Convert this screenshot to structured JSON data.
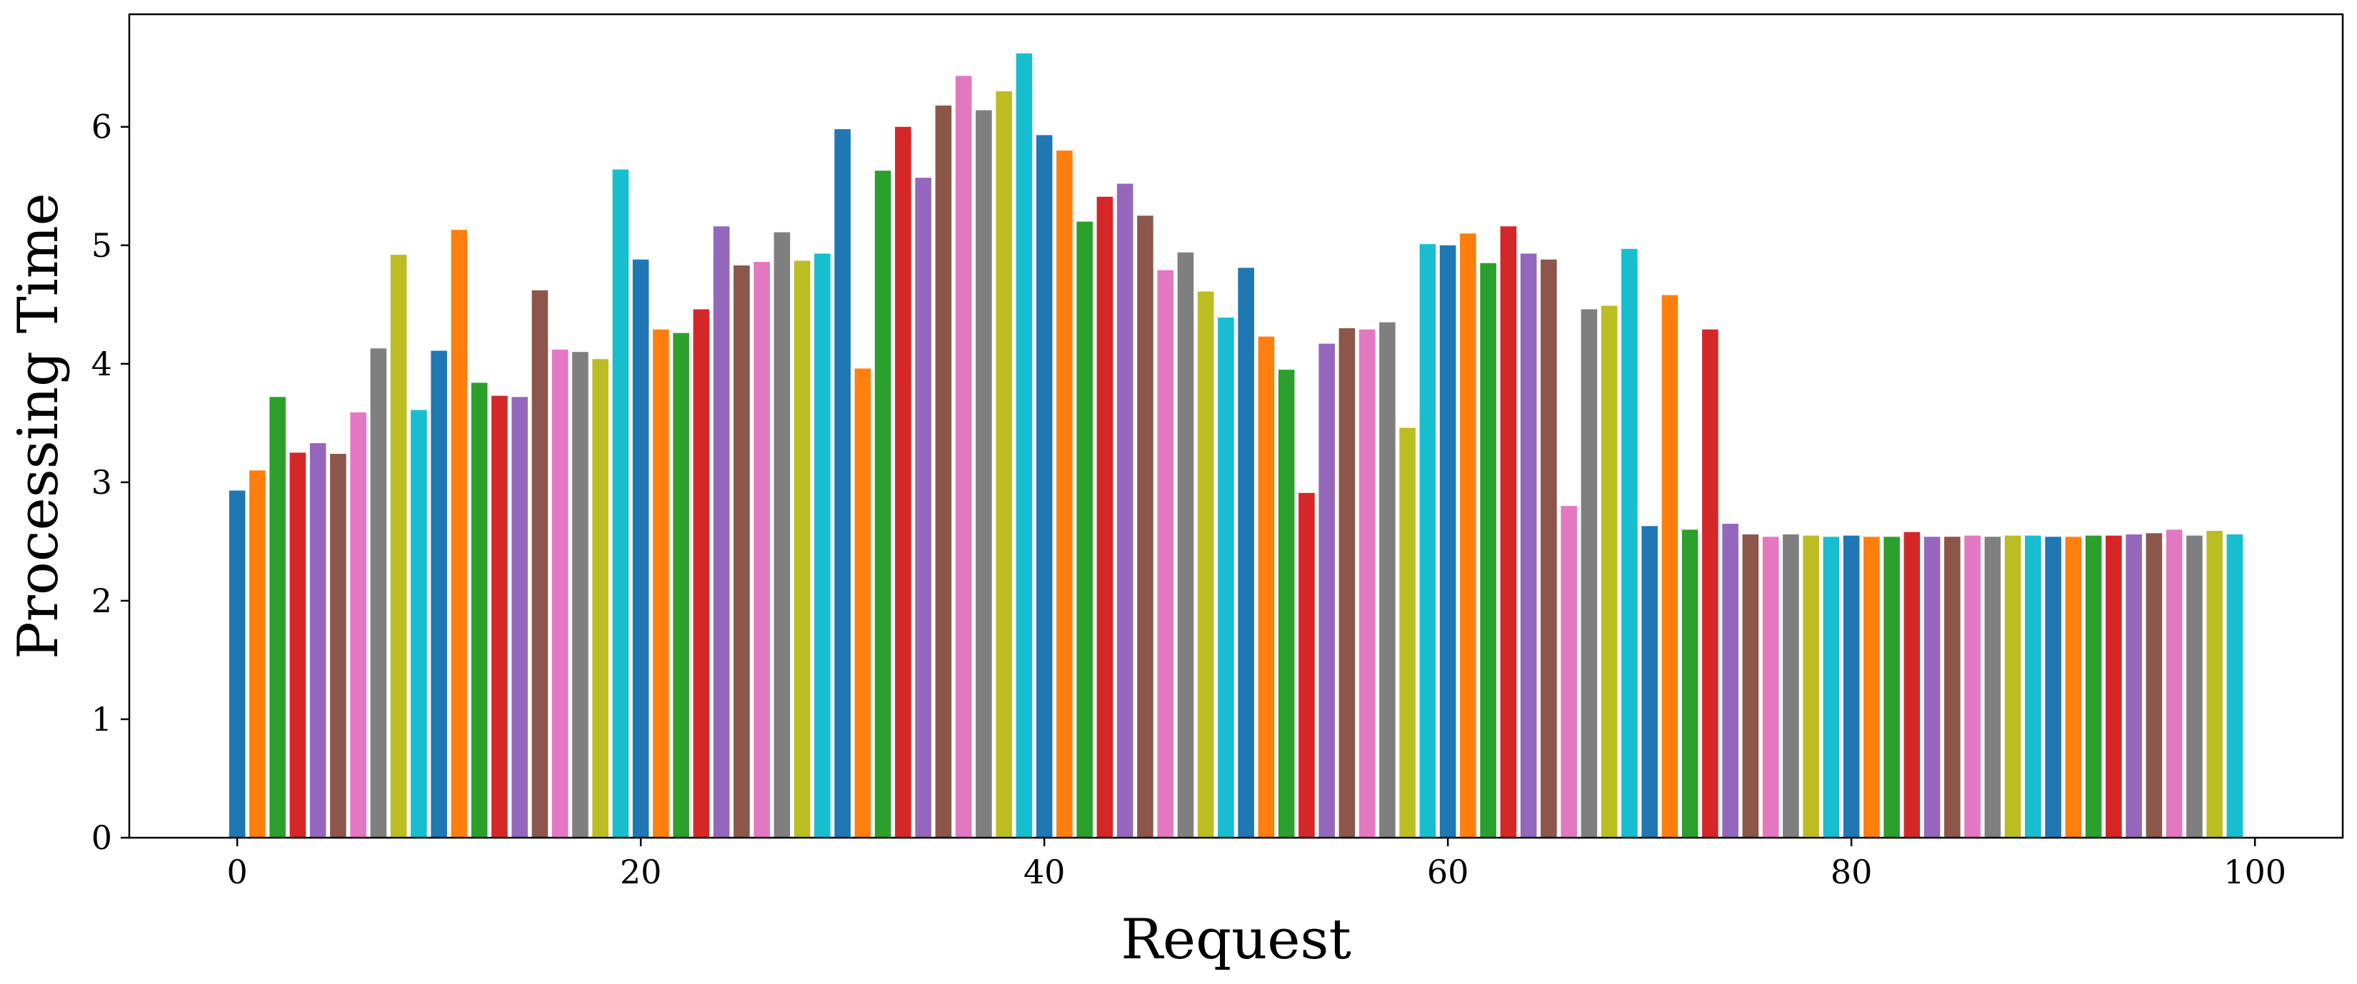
{
  "chart_data": {
    "type": "bar",
    "xlabel": "Request",
    "ylabel": "Processing Time",
    "title": "",
    "xlim": [
      -5.35,
      104.35
    ],
    "ylim": [
      0,
      6.95
    ],
    "xticks": [
      0,
      20,
      40,
      60,
      80,
      100
    ],
    "yticks": [
      0,
      1,
      2,
      3,
      4,
      5,
      6
    ],
    "grid": false,
    "legend": "none",
    "colors": [
      "#1f77b4",
      "#ff7f0e",
      "#2ca02c",
      "#d62728",
      "#9467bd",
      "#8c564b",
      "#e377c2",
      "#7f7f7f",
      "#bcbd22",
      "#17becf"
    ],
    "x": [
      0,
      1,
      2,
      3,
      4,
      5,
      6,
      7,
      8,
      9,
      10,
      11,
      12,
      13,
      14,
      15,
      16,
      17,
      18,
      19,
      20,
      21,
      22,
      23,
      24,
      25,
      26,
      27,
      28,
      29,
      30,
      31,
      32,
      33,
      34,
      35,
      36,
      37,
      38,
      39,
      40,
      41,
      42,
      43,
      44,
      45,
      46,
      47,
      48,
      49,
      50,
      51,
      52,
      53,
      54,
      55,
      56,
      57,
      58,
      59,
      60,
      61,
      62,
      63,
      64,
      65,
      66,
      67,
      68,
      69,
      70,
      71,
      72,
      73,
      74,
      75,
      76,
      77,
      78,
      79,
      80,
      81,
      82,
      83,
      84,
      85,
      86,
      87,
      88,
      89,
      90,
      91,
      92,
      93,
      94,
      95,
      96,
      97,
      98,
      99
    ],
    "values": [
      2.93,
      3.1,
      3.72,
      3.25,
      3.33,
      3.24,
      3.59,
      4.13,
      4.92,
      3.61,
      4.11,
      5.13,
      3.84,
      3.73,
      3.72,
      4.62,
      4.12,
      4.1,
      4.04,
      5.64,
      4.88,
      4.29,
      4.26,
      4.46,
      5.16,
      4.83,
      4.86,
      5.11,
      4.87,
      4.93,
      5.98,
      3.96,
      5.63,
      6.0,
      5.57,
      6.18,
      6.43,
      6.14,
      6.3,
      6.62,
      5.93,
      5.8,
      5.2,
      5.41,
      5.52,
      5.25,
      4.79,
      4.94,
      4.61,
      4.39,
      4.81,
      4.23,
      3.95,
      2.91,
      4.17,
      4.3,
      4.29,
      4.35,
      3.46,
      5.01,
      5.0,
      5.1,
      4.85,
      5.16,
      4.93,
      4.88,
      2.8,
      4.46,
      4.49,
      4.97,
      2.63,
      4.58,
      2.6,
      4.29,
      2.65,
      2.56,
      2.54,
      2.56,
      2.55,
      2.54,
      2.55,
      2.54,
      2.54,
      2.58,
      2.54,
      2.54,
      2.55,
      2.54,
      2.55,
      2.55,
      2.54,
      2.54,
      2.55,
      2.55,
      2.56,
      2.57,
      2.6,
      2.55,
      2.59,
      2.56
    ]
  }
}
